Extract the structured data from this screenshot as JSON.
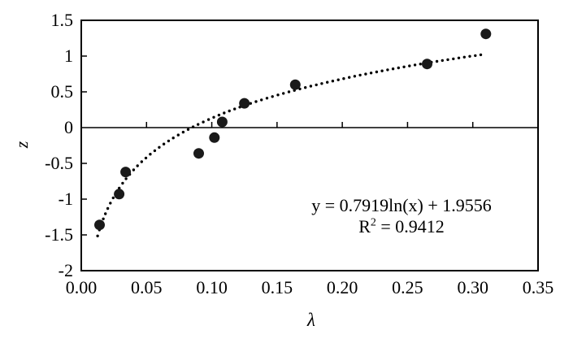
{
  "chart_data": {
    "type": "scatter",
    "title": "",
    "xlabel": "λ",
    "ylabel": "z",
    "xlim": [
      0,
      0.35
    ],
    "ylim": [
      -2,
      1.5
    ],
    "grid": false,
    "legend": null,
    "zero_line": true,
    "x_ticks": {
      "values": [
        0,
        0.05,
        0.1,
        0.15,
        0.2,
        0.25,
        0.3,
        0.35
      ],
      "labels": [
        "0.00",
        "0.05",
        "0.10",
        "0.15",
        "0.20",
        "0.25",
        "0.30",
        "0.35"
      ]
    },
    "y_ticks": {
      "values": [
        1.5,
        1,
        0.5,
        0,
        -0.5,
        -1,
        -1.5,
        -2
      ],
      "labels": [
        "1.5",
        "1",
        "0.5",
        "0",
        "-0.5",
        "-1",
        "-1.5",
        "-2"
      ]
    },
    "points": [
      [
        0.014,
        -1.36
      ],
      [
        0.029,
        -0.93
      ],
      [
        0.034,
        -0.62
      ],
      [
        0.09,
        -0.36
      ],
      [
        0.102,
        -0.14
      ],
      [
        0.108,
        0.08
      ],
      [
        0.125,
        0.34
      ],
      [
        0.164,
        0.6
      ],
      [
        0.265,
        0.89
      ],
      [
        0.31,
        1.31
      ]
    ],
    "trendline": {
      "type": "logarithmic",
      "a": 0.7919,
      "b": 1.9556,
      "x_start": 0.0125,
      "x_end": 0.31,
      "style": "dotted",
      "equation": "y = 0.7919ln(x) + 1.9556",
      "r_squared": 0.9412
    },
    "annotation": {
      "equation": "y = 0.7919ln(x) + 1.9556",
      "r2_base": "R",
      "r2_sup": "2",
      "r2_rest": " = 0.9412"
    },
    "colors": {
      "axis": "#000000",
      "marker": "#1a1a1a",
      "background": "#ffffff"
    }
  }
}
